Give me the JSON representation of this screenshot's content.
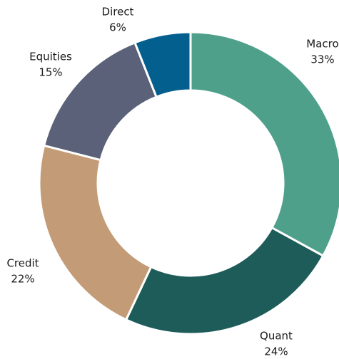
{
  "chart_data": {
    "type": "donut",
    "categories": [
      "Macro",
      "Quant",
      "Credit",
      "Equities",
      "Direct"
    ],
    "values": [
      33,
      24,
      22,
      15,
      6
    ],
    "value_labels": [
      "33%",
      "24%",
      "22%",
      "15%",
      "6%"
    ],
    "colors": [
      "#4fa08b",
      "#1e5c5a",
      "#c39b77",
      "#5a6178",
      "#035f8e"
    ]
  }
}
